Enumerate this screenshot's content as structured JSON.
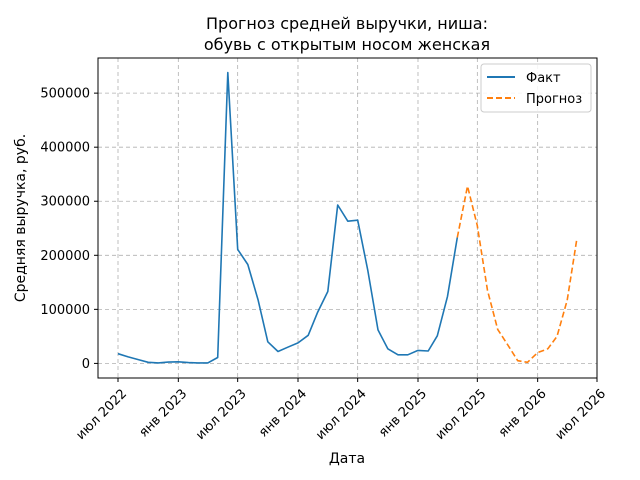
{
  "chart_data": {
    "type": "line",
    "title": [
      "Прогноз средней выручки, ниша:",
      "обувь с открытым носом женская"
    ],
    "xlabel": "Дата",
    "ylabel": "Средняя выручка, руб.",
    "ylim": [
      -27000,
      565000
    ],
    "xlim": [
      "2022-05-01",
      "2026-07-01"
    ],
    "yticks": [
      0,
      100000,
      200000,
      300000,
      400000,
      500000
    ],
    "ytick_labels": [
      "0",
      "100000",
      "200000",
      "300000",
      "400000",
      "500000"
    ],
    "xticks": [
      "2022-07-01",
      "2023-01-01",
      "2023-07-01",
      "2024-01-01",
      "2024-07-01",
      "2025-01-01",
      "2025-07-01",
      "2026-01-01",
      "2026-07-01"
    ],
    "xtick_labels": [
      "июл 2022",
      "янв 2023",
      "июл 2023",
      "янв 2024",
      "июл 2024",
      "янв 2025",
      "июл 2025",
      "янв 2026",
      "июл 2026"
    ],
    "grid": true,
    "legend_position": "top-right",
    "series": [
      {
        "name": "Факт",
        "color": "#1f77b4",
        "style": "solid",
        "points": [
          [
            "2022-07-01",
            18000
          ],
          [
            "2022-08-01",
            12000
          ],
          [
            "2022-09-01",
            7000
          ],
          [
            "2022-10-01",
            2000
          ],
          [
            "2022-11-01",
            1000
          ],
          [
            "2022-12-01",
            2500
          ],
          [
            "2023-01-01",
            3000
          ],
          [
            "2023-02-01",
            1500
          ],
          [
            "2023-03-01",
            1000
          ],
          [
            "2023-04-01",
            1000
          ],
          [
            "2023-05-01",
            11000
          ],
          [
            "2023-06-01",
            538000
          ],
          [
            "2023-07-01",
            211000
          ],
          [
            "2023-08-01",
            183000
          ],
          [
            "2023-09-01",
            118000
          ],
          [
            "2023-10-01",
            40000
          ],
          [
            "2023-11-01",
            22000
          ],
          [
            "2023-12-01",
            30000
          ],
          [
            "2024-01-01",
            38000
          ],
          [
            "2024-02-01",
            52000
          ],
          [
            "2024-03-01",
            95000
          ],
          [
            "2024-04-01",
            133000
          ],
          [
            "2024-05-01",
            293000
          ],
          [
            "2024-06-01",
            263000
          ],
          [
            "2024-07-01",
            265000
          ],
          [
            "2024-08-01",
            172000
          ],
          [
            "2024-09-01",
            62000
          ],
          [
            "2024-10-01",
            27000
          ],
          [
            "2024-11-01",
            16000
          ],
          [
            "2024-12-01",
            16000
          ],
          [
            "2025-01-01",
            24000
          ],
          [
            "2025-02-01",
            23000
          ],
          [
            "2025-03-01",
            51000
          ],
          [
            "2025-04-01",
            124000
          ],
          [
            "2025-05-01",
            233000
          ]
        ]
      },
      {
        "name": "Прогноз",
        "color": "#ff7f0e",
        "style": "dashed",
        "points": [
          [
            "2025-05-01",
            233000
          ],
          [
            "2025-06-01",
            328000
          ],
          [
            "2025-07-01",
            255000
          ],
          [
            "2025-08-01",
            135000
          ],
          [
            "2025-09-01",
            63000
          ],
          [
            "2025-10-01",
            35000
          ],
          [
            "2025-11-01",
            5000
          ],
          [
            "2025-12-01",
            2000
          ],
          [
            "2026-01-01",
            20000
          ],
          [
            "2026-02-01",
            27000
          ],
          [
            "2026-03-01",
            50000
          ],
          [
            "2026-04-01",
            117000
          ],
          [
            "2026-05-01",
            232000
          ]
        ]
      }
    ]
  }
}
